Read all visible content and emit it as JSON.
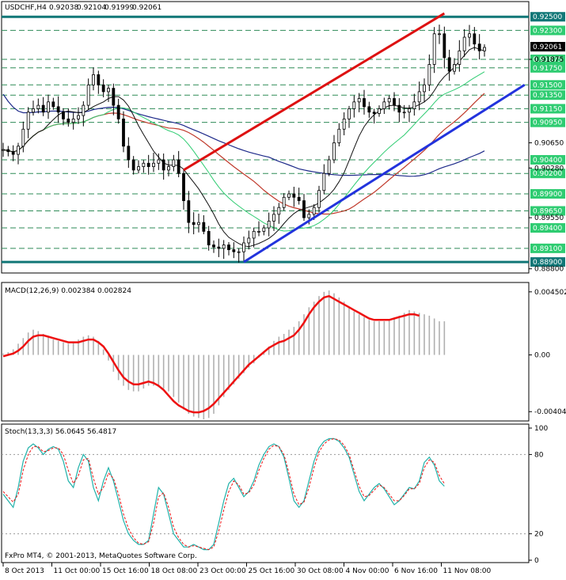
{
  "header": {
    "symbol_tf": "USDCHF,H4",
    "ohlc": [
      "0.92038",
      "0.92104",
      "0.91999",
      "0.92061"
    ]
  },
  "price_panel": {
    "ylim": [
      0.8875,
      0.927
    ],
    "current_price": 0.92061,
    "current_price_label": "0.92061",
    "horizontal_levels": [
      {
        "value": 0.925,
        "label": "0.92500",
        "style": "thick-teal"
      },
      {
        "value": 0.889,
        "label": "0.88900",
        "style": "thick-teal"
      },
      {
        "value": 0.923,
        "label": "0.92300",
        "style": "dashed-green"
      },
      {
        "value": 0.91875,
        "label": "0.91875",
        "style": "dashed-green"
      },
      {
        "value": 0.9175,
        "label": "0.91750",
        "style": "dashed-green"
      },
      {
        "value": 0.915,
        "label": "0.91500",
        "style": "dashed-green"
      },
      {
        "value": 0.9135,
        "label": "0.91350",
        "style": "dashed-green"
      },
      {
        "value": 0.9115,
        "label": "0.91150",
        "style": "dashed-green"
      },
      {
        "value": 0.9095,
        "label": "0.90950",
        "style": "dashed-green"
      },
      {
        "value": 0.904,
        "label": "0.90400",
        "style": "dashed-green"
      },
      {
        "value": 0.902,
        "label": "0.90200",
        "style": "dashed-green"
      },
      {
        "value": 0.899,
        "label": "0.89900",
        "style": "dashed-green"
      },
      {
        "value": 0.8965,
        "label": "0.89650",
        "style": "dashed-green"
      },
      {
        "value": 0.894,
        "label": "0.89400",
        "style": "dashed-green"
      },
      {
        "value": 0.891,
        "label": "0.89100",
        "style": "dashed-green"
      }
    ],
    "scale_labels": [
      {
        "value": 0.91875,
        "label": "0.91875"
      },
      {
        "value": 0.9065,
        "label": "0.90650"
      },
      {
        "value": 0.9028,
        "label": "0.90280"
      },
      {
        "value": 0.8955,
        "label": "0.89550"
      },
      {
        "value": 0.888,
        "label": "0.88800"
      }
    ],
    "colors": {
      "up_trend": "#2233dd",
      "down_channel": "#dd1111",
      "ma_fast": "#111111",
      "ma_mid": "#2ecc71",
      "ma_slow": "#c0392b",
      "ma_long": "#1e2a8a",
      "level": "#2e8b57",
      "teal": "#117777"
    }
  },
  "macd_panel": {
    "label": "MACD(12,26,9) 0.002384 0.002824",
    "ylim": [
      -0.0046,
      0.005
    ],
    "scale_labels": [
      {
        "value": 0.004502,
        "label": "0.004502"
      },
      {
        "value": 0.0,
        "label": "0.00"
      },
      {
        "value": -0.004049,
        "label": "-0.00404"
      }
    ],
    "colors": {
      "signal": "#ee1111",
      "histogram": "#b0b0b0"
    }
  },
  "stoch_panel": {
    "label": "Stoch(13,3,3) 56.0645 56.4817",
    "ylim": [
      0,
      100
    ],
    "levels": [
      80,
      20
    ],
    "scale_labels": [
      {
        "value": 100,
        "label": "100"
      },
      {
        "value": 80,
        "label": "80"
      },
      {
        "value": 20,
        "label": "20"
      },
      {
        "value": 0,
        "label": "0"
      }
    ],
    "colors": {
      "main": "#20b2aa",
      "signal": "#ee1111"
    }
  },
  "copyright": "FxPro MT4, © 2001-2013, MetaQuotes Software Corp.",
  "x_axis": {
    "labels": [
      "8 Oct 2013",
      "11 Oct 00:00",
      "15 Oct 16:00",
      "18 Oct 08:00",
      "23 Oct 00:00",
      "25 Oct 16:00",
      "30 Oct 08:00",
      "4 Nov 00:00",
      "6 Nov 16:00",
      "11 Nov 08:00"
    ]
  },
  "chart_data": {
    "type": "candlestick",
    "symbol": "USDCHF",
    "timeframe": "H4",
    "price_series": [
      0.9055,
      0.9052,
      0.9048,
      0.906,
      0.9085,
      0.911,
      0.9115,
      0.912,
      0.911,
      0.9125,
      0.9118,
      0.911,
      0.91,
      0.9095,
      0.91,
      0.9105,
      0.912,
      0.915,
      0.9165,
      0.915,
      0.914,
      0.9145,
      0.912,
      0.91,
      0.906,
      0.904,
      0.9025,
      0.903,
      0.9035,
      0.903,
      0.9035,
      0.904,
      0.9025,
      0.903,
      0.904,
      0.902,
      0.898,
      0.8948,
      0.8945,
      0.8948,
      0.8935,
      0.8915,
      0.8912,
      0.891,
      0.8915,
      0.8908,
      0.8905,
      0.8905,
      0.8918,
      0.8925,
      0.8935,
      0.8935,
      0.894,
      0.895,
      0.896,
      0.897,
      0.8985,
      0.899,
      0.8985,
      0.898,
      0.8955,
      0.896,
      0.897,
      0.8995,
      0.902,
      0.904,
      0.9065,
      0.9085,
      0.91,
      0.9115,
      0.9125,
      0.913,
      0.9118,
      0.911,
      0.9108,
      0.9115,
      0.9125,
      0.913,
      0.912,
      0.911,
      0.911,
      0.9115,
      0.9125,
      0.914,
      0.915,
      0.918,
      0.9225,
      0.9225,
      0.919,
      0.917,
      0.918,
      0.92,
      0.922,
      0.9225,
      0.921,
      0.92,
      0.9205
    ],
    "trendlines": [
      {
        "name": "down-channel",
        "points": [
          [
            36,
            0.9025
          ],
          [
            88,
            0.9255
          ]
        ]
      },
      {
        "name": "up-trend",
        "points": [
          [
            48,
            0.889
          ],
          [
            104,
            0.915
          ]
        ]
      }
    ],
    "macd_histogram": [
      0.0001,
      0.0002,
      0.0004,
      0.0008,
      0.0012,
      0.0016,
      0.0018,
      0.0017,
      0.0015,
      0.0013,
      0.0011,
      0.001,
      0.0009,
      0.0008,
      0.0009,
      0.0011,
      0.0013,
      0.0014,
      0.0013,
      0.001,
      0.0004,
      -0.0004,
      -0.0012,
      -0.0018,
      -0.0022,
      -0.0025,
      -0.0026,
      -0.0026,
      -0.0024,
      -0.0022,
      -0.0022,
      -0.0023,
      -0.0024,
      -0.0026,
      -0.003,
      -0.0034,
      -0.0039,
      -0.0042,
      -0.0044,
      -0.0045,
      -0.0046,
      -0.0045,
      -0.0042,
      -0.0036,
      -0.003,
      -0.0025,
      -0.0021,
      -0.0017,
      -0.0013,
      -0.0009,
      -0.0006,
      -0.0002,
      0.0002,
      0.0006,
      0.001,
      0.0013,
      0.0015,
      0.0018,
      0.002,
      0.0024,
      0.0029,
      0.0034,
      0.0038,
      0.0042,
      0.0045,
      0.0046,
      0.0044,
      0.0041,
      0.0038,
      0.0034,
      0.0031,
      0.0029,
      0.0027,
      0.0025,
      0.0024,
      0.0024,
      0.0024,
      0.0025,
      0.0026,
      0.0028,
      0.003,
      0.0032,
      0.0031,
      0.003,
      0.0029,
      0.0028,
      0.0026,
      0.0024,
      0.0024
    ],
    "macd_signal": [
      -0.0001,
      0.0,
      0.0001,
      0.0003,
      0.0006,
      0.001,
      0.0013,
      0.0014,
      0.0014,
      0.0013,
      0.0012,
      0.0011,
      0.001,
      0.0009,
      0.0009,
      0.0009,
      0.001,
      0.0011,
      0.0011,
      0.0009,
      0.0006,
      0.0001,
      -0.0005,
      -0.0011,
      -0.0016,
      -0.0019,
      -0.0021,
      -0.0021,
      -0.002,
      -0.0019,
      -0.002,
      -0.0022,
      -0.0025,
      -0.0029,
      -0.0033,
      -0.0036,
      -0.0038,
      -0.004,
      -0.0041,
      -0.0041,
      -0.004,
      -0.0038,
      -0.0035,
      -0.0031,
      -0.0027,
      -0.0023,
      -0.0019,
      -0.0015,
      -0.0011,
      -0.0007,
      -0.0004,
      -0.0001,
      0.0002,
      0.0005,
      0.0007,
      0.0009,
      0.001,
      0.0012,
      0.0014,
      0.0018,
      0.0023,
      0.0029,
      0.0034,
      0.0038,
      0.0041,
      0.0042,
      0.004,
      0.0038,
      0.0036,
      0.0034,
      0.0032,
      0.003,
      0.0028,
      0.0026,
      0.0025,
      0.0025,
      0.0025,
      0.0025,
      0.0026,
      0.0027,
      0.0028,
      0.0029,
      0.0029,
      0.0028
    ],
    "stoch_main": [
      50,
      45,
      40,
      55,
      75,
      85,
      88,
      85,
      80,
      84,
      86,
      84,
      75,
      60,
      55,
      70,
      80,
      75,
      55,
      45,
      60,
      70,
      60,
      45,
      30,
      20,
      15,
      12,
      12,
      15,
      35,
      55,
      50,
      35,
      20,
      15,
      10,
      10,
      12,
      10,
      8,
      8,
      12,
      28,
      45,
      58,
      62,
      55,
      48,
      52,
      60,
      72,
      80,
      86,
      88,
      86,
      78,
      62,
      45,
      40,
      45,
      60,
      75,
      85,
      90,
      92,
      92,
      90,
      85,
      78,
      65,
      52,
      45,
      50,
      55,
      58,
      54,
      48,
      42,
      45,
      50,
      55,
      54,
      60,
      74,
      78,
      72,
      60,
      56
    ],
    "stoch_signal": [
      52,
      48,
      44,
      50,
      68,
      80,
      86,
      86,
      82,
      83,
      85,
      85,
      80,
      68,
      58,
      64,
      76,
      77,
      62,
      50,
      55,
      66,
      62,
      50,
      35,
      24,
      17,
      13,
      12,
      14,
      28,
      48,
      51,
      40,
      25,
      17,
      12,
      10,
      11,
      10,
      9,
      8,
      10,
      22,
      38,
      52,
      60,
      57,
      50,
      51,
      57,
      68,
      77,
      84,
      87,
      86,
      80,
      66,
      50,
      42,
      44,
      55,
      70,
      82,
      88,
      91,
      92,
      91,
      87,
      80,
      68,
      56,
      48,
      49,
      53,
      57,
      55,
      50,
      45,
      45,
      49,
      54,
      54,
      58,
      70,
      76,
      74,
      64,
      58
    ]
  }
}
